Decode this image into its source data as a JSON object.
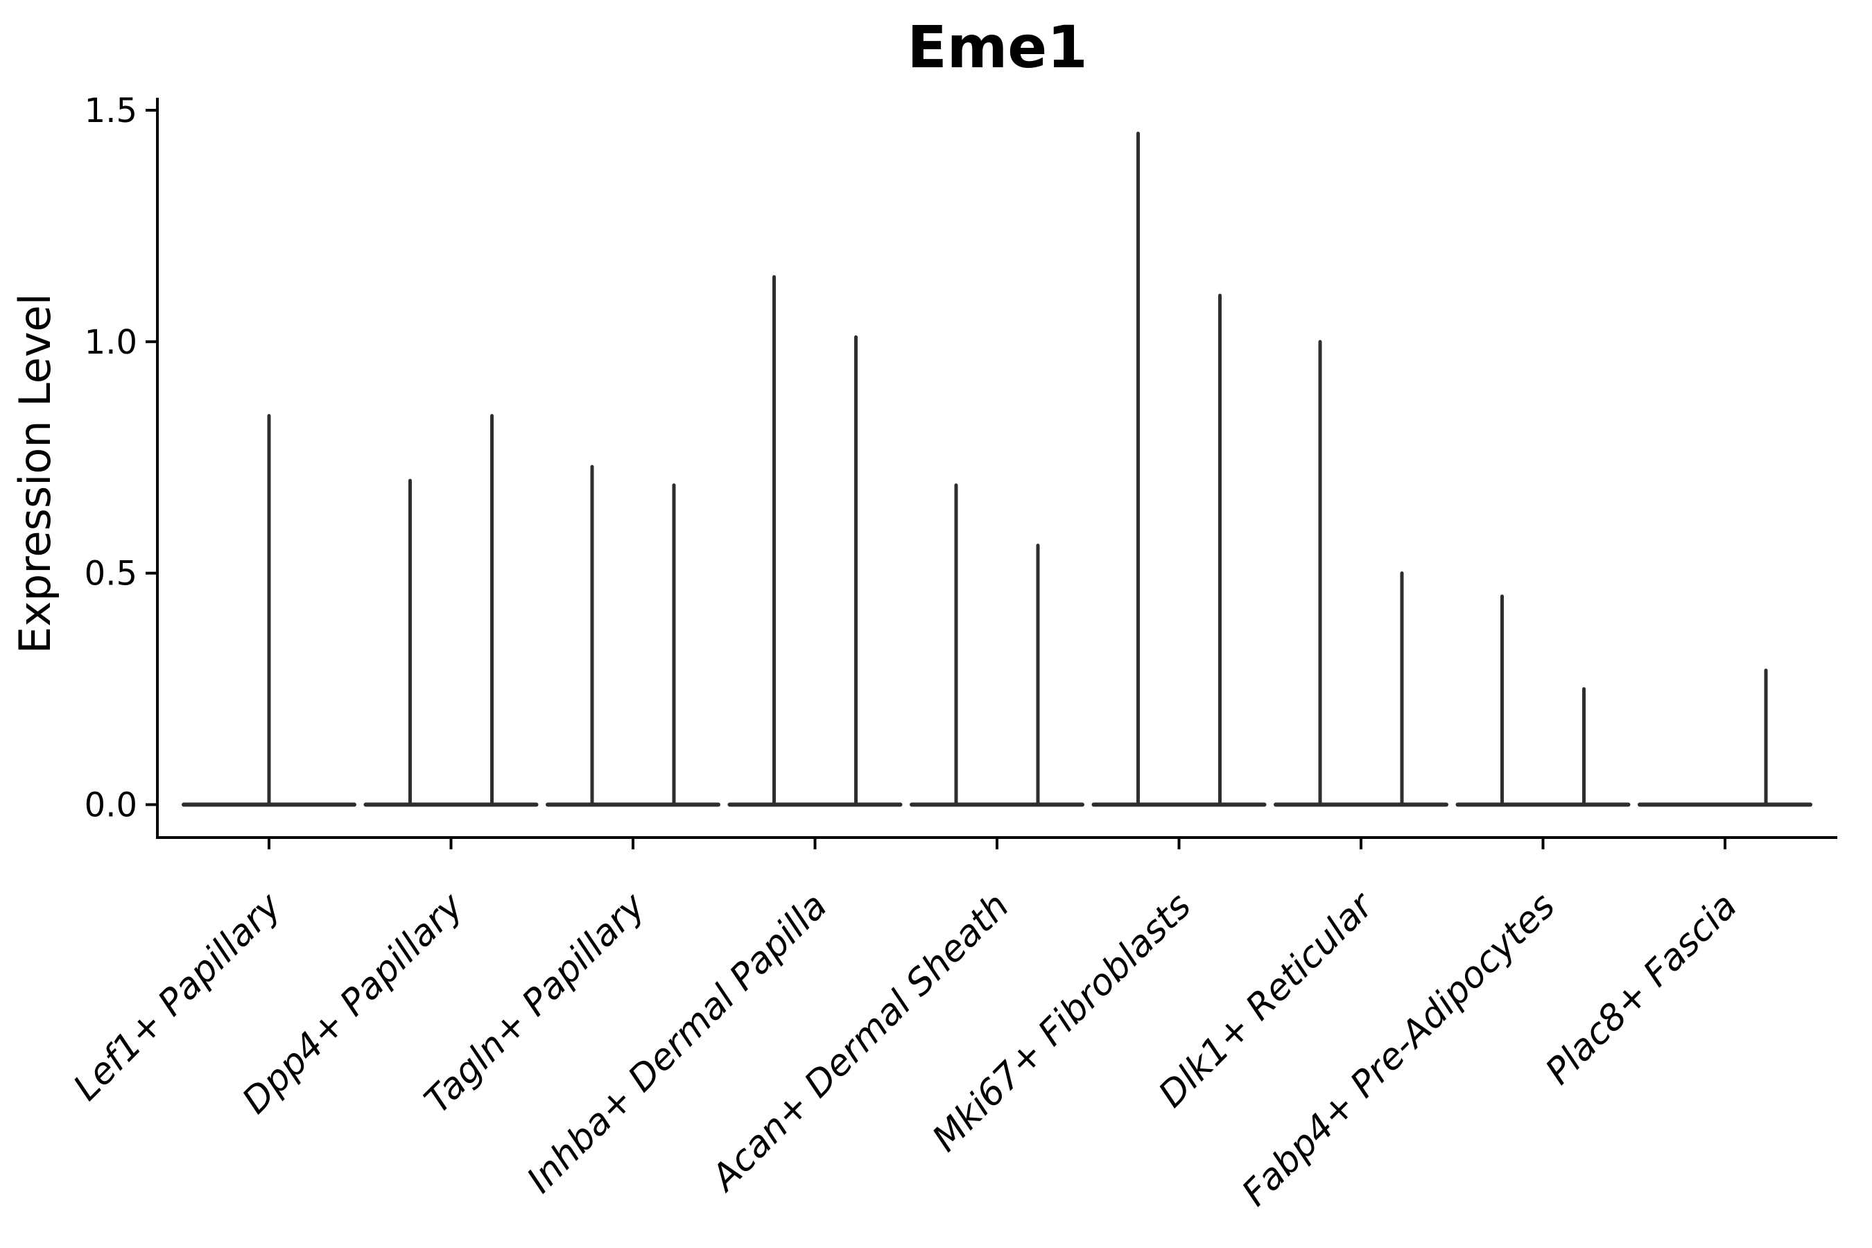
{
  "chart_data": {
    "type": "violin",
    "title": "Eme1",
    "ylabel": "Expression Level",
    "xlabel": "",
    "ylim": [
      0.0,
      1.5
    ],
    "yticks": [
      {
        "value": 0.0,
        "label": "0.0"
      },
      {
        "value": 0.5,
        "label": "0.5"
      },
      {
        "value": 1.0,
        "label": "1.0"
      },
      {
        "value": 1.5,
        "label": "1.5"
      }
    ],
    "categories": [
      "Lef1+ Papillary",
      "Dpp4+ Papillary",
      "Tagln+ Papillary",
      "Inhba+ Dermal Papilla",
      "Acan+ Dermal Sheath",
      "Mki67+ Fibroblasts",
      "Dlk1+ Reticular",
      "Fabp4+ Pre-Adipocytes",
      "Plac8+ Fascia"
    ],
    "grid": "off",
    "legend": "none",
    "baseline_value": 0.0,
    "violins": [
      {
        "category": "Lef1+ Papillary",
        "position": "center",
        "max": 0.84
      },
      {
        "category": "Dpp4+ Papillary",
        "position": "left",
        "max": 0.7
      },
      {
        "category": "Dpp4+ Papillary",
        "position": "right",
        "max": 0.84
      },
      {
        "category": "Tagln+ Papillary",
        "position": "left",
        "max": 0.73
      },
      {
        "category": "Tagln+ Papillary",
        "position": "right",
        "max": 0.69
      },
      {
        "category": "Inhba+ Dermal Papilla",
        "position": "left",
        "max": 1.14
      },
      {
        "category": "Inhba+ Dermal Papilla",
        "position": "right",
        "max": 1.01
      },
      {
        "category": "Acan+ Dermal Sheath",
        "position": "left",
        "max": 0.69
      },
      {
        "category": "Acan+ Dermal Sheath",
        "position": "right",
        "max": 0.56
      },
      {
        "category": "Mki67+ Fibroblasts",
        "position": "left",
        "max": 1.45
      },
      {
        "category": "Mki67+ Fibroblasts",
        "position": "right",
        "max": 1.1
      },
      {
        "category": "Dlk1+ Reticular",
        "position": "left",
        "max": 1.0
      },
      {
        "category": "Dlk1+ Reticular",
        "position": "right",
        "max": 0.5
      },
      {
        "category": "Fabp4+ Pre-Adipocytes",
        "position": "left",
        "max": 0.45
      },
      {
        "category": "Fabp4+ Pre-Adipocytes",
        "position": "right",
        "max": 0.25
      },
      {
        "category": "Plac8+ Fascia",
        "position": "right",
        "max": 0.29
      }
    ],
    "colors": {
      "violin": "#2e2e2e",
      "axis": "#000000",
      "text": "#000000"
    }
  }
}
